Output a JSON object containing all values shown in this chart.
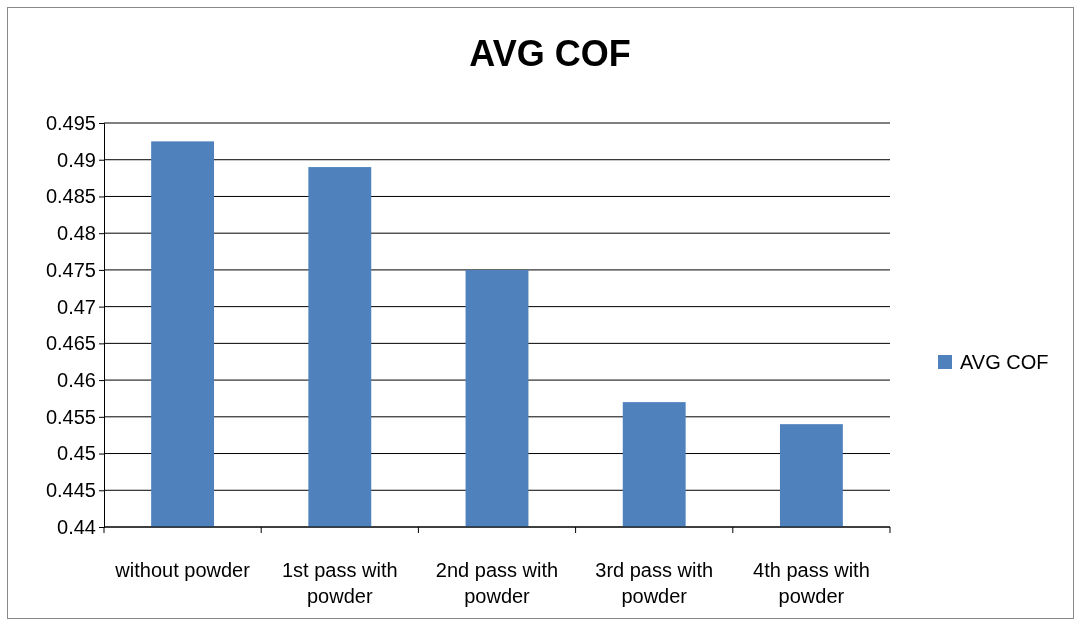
{
  "chart_data": {
    "type": "bar",
    "title": "AVG COF",
    "categories": [
      "without powder",
      "1st pass with powder",
      "2nd pass with powder",
      "3rd pass with powder",
      "4th pass with powder"
    ],
    "series": [
      {
        "name": "AVG COF",
        "color": "#4f81bd",
        "values": [
          0.4925,
          0.489,
          0.475,
          0.457,
          0.454
        ]
      }
    ],
    "ylim": [
      0.44,
      0.495
    ],
    "yticks": [
      0.44,
      0.445,
      0.45,
      0.455,
      0.46,
      0.465,
      0.47,
      0.475,
      0.48,
      0.485,
      0.49,
      0.495
    ],
    "grid": "y",
    "legend": "right"
  }
}
